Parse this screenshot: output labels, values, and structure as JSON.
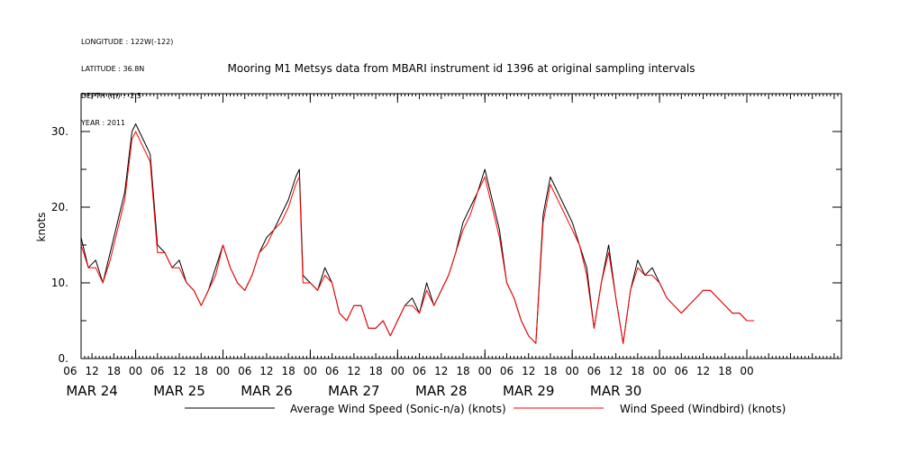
{
  "metadata": [
    "LONGITUDE : 122W(-122)",
    "LATITUDE : 36.8N",
    "DEPTH (m) : -2.5",
    "YEAR : 2011"
  ],
  "chart_data": {
    "type": "line",
    "title": "Mooring M1 Metsys data from MBARI instrument id 1396 at original sampling intervals",
    "ylabel": "knots",
    "xlabel": "",
    "ylim": [
      0,
      35
    ],
    "xlim": [
      -15,
      194
    ],
    "y_ticks": [
      0,
      10,
      20,
      30
    ],
    "y_tick_labels": [
      "0.",
      "10.",
      "20.",
      "30."
    ],
    "x_hour_ticks": [
      {
        "hour": -18,
        "label": "06"
      },
      {
        "hour": -12,
        "label": "12"
      },
      {
        "hour": -6,
        "label": "18"
      },
      {
        "hour": 0,
        "label": "00"
      },
      {
        "hour": 6,
        "label": "06"
      },
      {
        "hour": 12,
        "label": "12"
      },
      {
        "hour": 18,
        "label": "18"
      },
      {
        "hour": 24,
        "label": "00"
      },
      {
        "hour": 30,
        "label": "06"
      },
      {
        "hour": 36,
        "label": "12"
      },
      {
        "hour": 42,
        "label": "18"
      },
      {
        "hour": 48,
        "label": "00"
      },
      {
        "hour": 54,
        "label": "06"
      },
      {
        "hour": 60,
        "label": "12"
      },
      {
        "hour": 66,
        "label": "18"
      },
      {
        "hour": 72,
        "label": "00"
      },
      {
        "hour": 78,
        "label": "06"
      },
      {
        "hour": 84,
        "label": "12"
      },
      {
        "hour": 90,
        "label": "18"
      },
      {
        "hour": 96,
        "label": "00"
      },
      {
        "hour": 102,
        "label": "06"
      },
      {
        "hour": 108,
        "label": "12"
      },
      {
        "hour": 114,
        "label": "18"
      },
      {
        "hour": 120,
        "label": "00"
      },
      {
        "hour": 126,
        "label": "06"
      },
      {
        "hour": 132,
        "label": "12"
      },
      {
        "hour": 138,
        "label": "18"
      },
      {
        "hour": 144,
        "label": "00"
      },
      {
        "hour": 150,
        "label": "06"
      },
      {
        "hour": 156,
        "label": "12"
      },
      {
        "hour": 162,
        "label": "18"
      },
      {
        "hour": 168,
        "label": "00"
      }
    ],
    "x_day_labels": [
      {
        "hour": -12,
        "label": "MAR 24"
      },
      {
        "hour": 12,
        "label": "MAR 25"
      },
      {
        "hour": 36,
        "label": "MAR 26"
      },
      {
        "hour": 60,
        "label": "MAR 27"
      },
      {
        "hour": 84,
        "label": "MAR 28"
      },
      {
        "hour": 108,
        "label": "MAR 29"
      },
      {
        "hour": 132,
        "label": "MAR 30"
      }
    ],
    "legend": "bottom",
    "series": [
      {
        "name": "Average Wind Speed (Sonic-n/a) (knots)",
        "color": "#000000",
        "x": [
          -15,
          -13,
          -11,
          -9,
          -7,
          -5,
          -3,
          -2,
          -1,
          0,
          2,
          4,
          6,
          8,
          10,
          12,
          14,
          16,
          18,
          20,
          22,
          24,
          26,
          28,
          30,
          32,
          34,
          36,
          38,
          40,
          42,
          44,
          45,
          46,
          48,
          50,
          52,
          54,
          56,
          58,
          60,
          62,
          64,
          66,
          68,
          70,
          72,
          74,
          76,
          78,
          80,
          82,
          84,
          86,
          88,
          90,
          92,
          94,
          96,
          98,
          100,
          102,
          104,
          106,
          108,
          110,
          112,
          114,
          116,
          118,
          120,
          122,
          124,
          126,
          128,
          130,
          132,
          134,
          136,
          138,
          140,
          142,
          144,
          146,
          148,
          150,
          152,
          154,
          156,
          158,
          160,
          162,
          164,
          166,
          168,
          170
        ],
        "y": [
          16,
          12,
          13,
          10,
          14,
          18,
          22,
          26,
          30,
          31,
          29,
          27,
          15,
          14,
          12,
          13,
          10,
          9,
          7,
          9,
          12,
          15,
          12,
          10,
          9,
          11,
          14,
          16,
          17,
          19,
          21,
          24,
          25,
          11,
          10,
          9,
          12,
          10,
          6,
          5,
          7,
          7,
          4,
          4,
          5,
          3,
          5,
          7,
          8,
          6,
          10,
          7,
          9,
          11,
          14,
          18,
          20,
          22,
          25,
          21,
          17,
          10,
          8,
          5,
          3,
          2,
          19,
          24,
          22,
          20,
          18,
          15,
          12,
          4,
          10,
          15,
          8,
          2,
          9,
          13,
          11,
          12,
          10,
          8,
          7,
          6,
          7,
          8,
          9,
          9,
          8,
          7,
          6,
          6,
          5,
          5
        ]
      },
      {
        "name": "Wind Speed (Windbird) (knots)",
        "color": "#ff0000",
        "x": [
          -15,
          -13,
          -11,
          -9,
          -7,
          -5,
          -3,
          -2,
          -1,
          0,
          2,
          4,
          6,
          8,
          10,
          12,
          14,
          16,
          18,
          20,
          22,
          24,
          26,
          28,
          30,
          32,
          34,
          36,
          38,
          40,
          42,
          44,
          45,
          46,
          48,
          50,
          52,
          54,
          56,
          58,
          60,
          62,
          64,
          66,
          68,
          70,
          72,
          74,
          76,
          78,
          80,
          82,
          84,
          86,
          88,
          90,
          92,
          94,
          96,
          98,
          100,
          102,
          104,
          106,
          108,
          110,
          112,
          114,
          116,
          118,
          120,
          122,
          124,
          126,
          128,
          130,
          132,
          134,
          136,
          138,
          140,
          142,
          144,
          146,
          148,
          150,
          152,
          154,
          156,
          158,
          160,
          162,
          164,
          166,
          168,
          170
        ],
        "y": [
          15,
          12,
          12,
          10,
          13,
          17,
          21,
          25,
          29,
          30,
          28,
          26,
          14,
          14,
          12,
          12,
          10,
          9,
          7,
          9,
          11,
          15,
          12,
          10,
          9,
          11,
          14,
          15,
          17,
          18,
          20,
          23,
          24,
          10,
          10,
          9,
          11,
          10,
          6,
          5,
          7,
          7,
          4,
          4,
          5,
          3,
          5,
          7,
          7,
          6,
          9,
          7,
          9,
          11,
          14,
          17,
          19,
          22,
          24,
          20,
          16,
          10,
          8,
          5,
          3,
          2,
          18,
          23,
          21,
          19,
          17,
          15,
          11,
          4,
          10,
          14,
          8,
          2,
          9,
          12,
          11,
          11,
          10,
          8,
          7,
          6,
          7,
          8,
          9,
          9,
          8,
          7,
          6,
          6,
          5,
          5
        ]
      }
    ]
  }
}
